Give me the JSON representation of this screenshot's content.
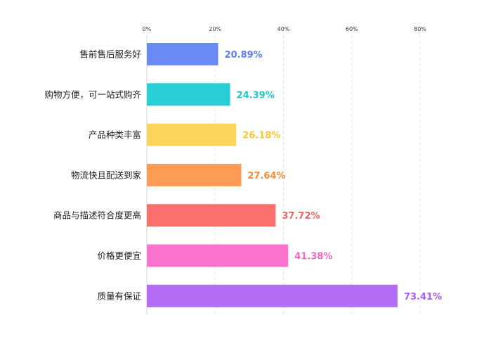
{
  "chart_data": {
    "type": "bar",
    "orientation": "horizontal",
    "categories": [
      "售前售后服务好",
      "购物方便，可一站式购齐",
      "产品种类丰富",
      "物流快且配送到家",
      "商品与描述符合度更高",
      "价格更便宜",
      "质量有保证"
    ],
    "values": [
      20.89,
      24.39,
      26.18,
      27.64,
      37.72,
      41.38,
      73.41
    ],
    "value_labels": [
      "20.89%",
      "24.39%",
      "26.18%",
      "27.64%",
      "37.72%",
      "41.38%",
      "73.41%"
    ],
    "colors": [
      "#6b8af5",
      "#29cfd6",
      "#fcd55a",
      "#fb9b55",
      "#fb6f6f",
      "#fb73cc",
      "#b26cf6"
    ],
    "label_colors": [
      "#5f7ff0",
      "#1fc6ce",
      "#f6c83a",
      "#f58a3d",
      "#f56363",
      "#f566c4",
      "#a660f0"
    ],
    "xlim": [
      0,
      80
    ],
    "xticks": [
      0,
      20,
      40,
      60,
      80
    ],
    "xtick_labels": [
      "0%",
      "20%",
      "40%",
      "60%",
      "80%"
    ],
    "grid": true,
    "x_axis_position": "top",
    "title": "",
    "xlabel": "",
    "ylabel": ""
  }
}
